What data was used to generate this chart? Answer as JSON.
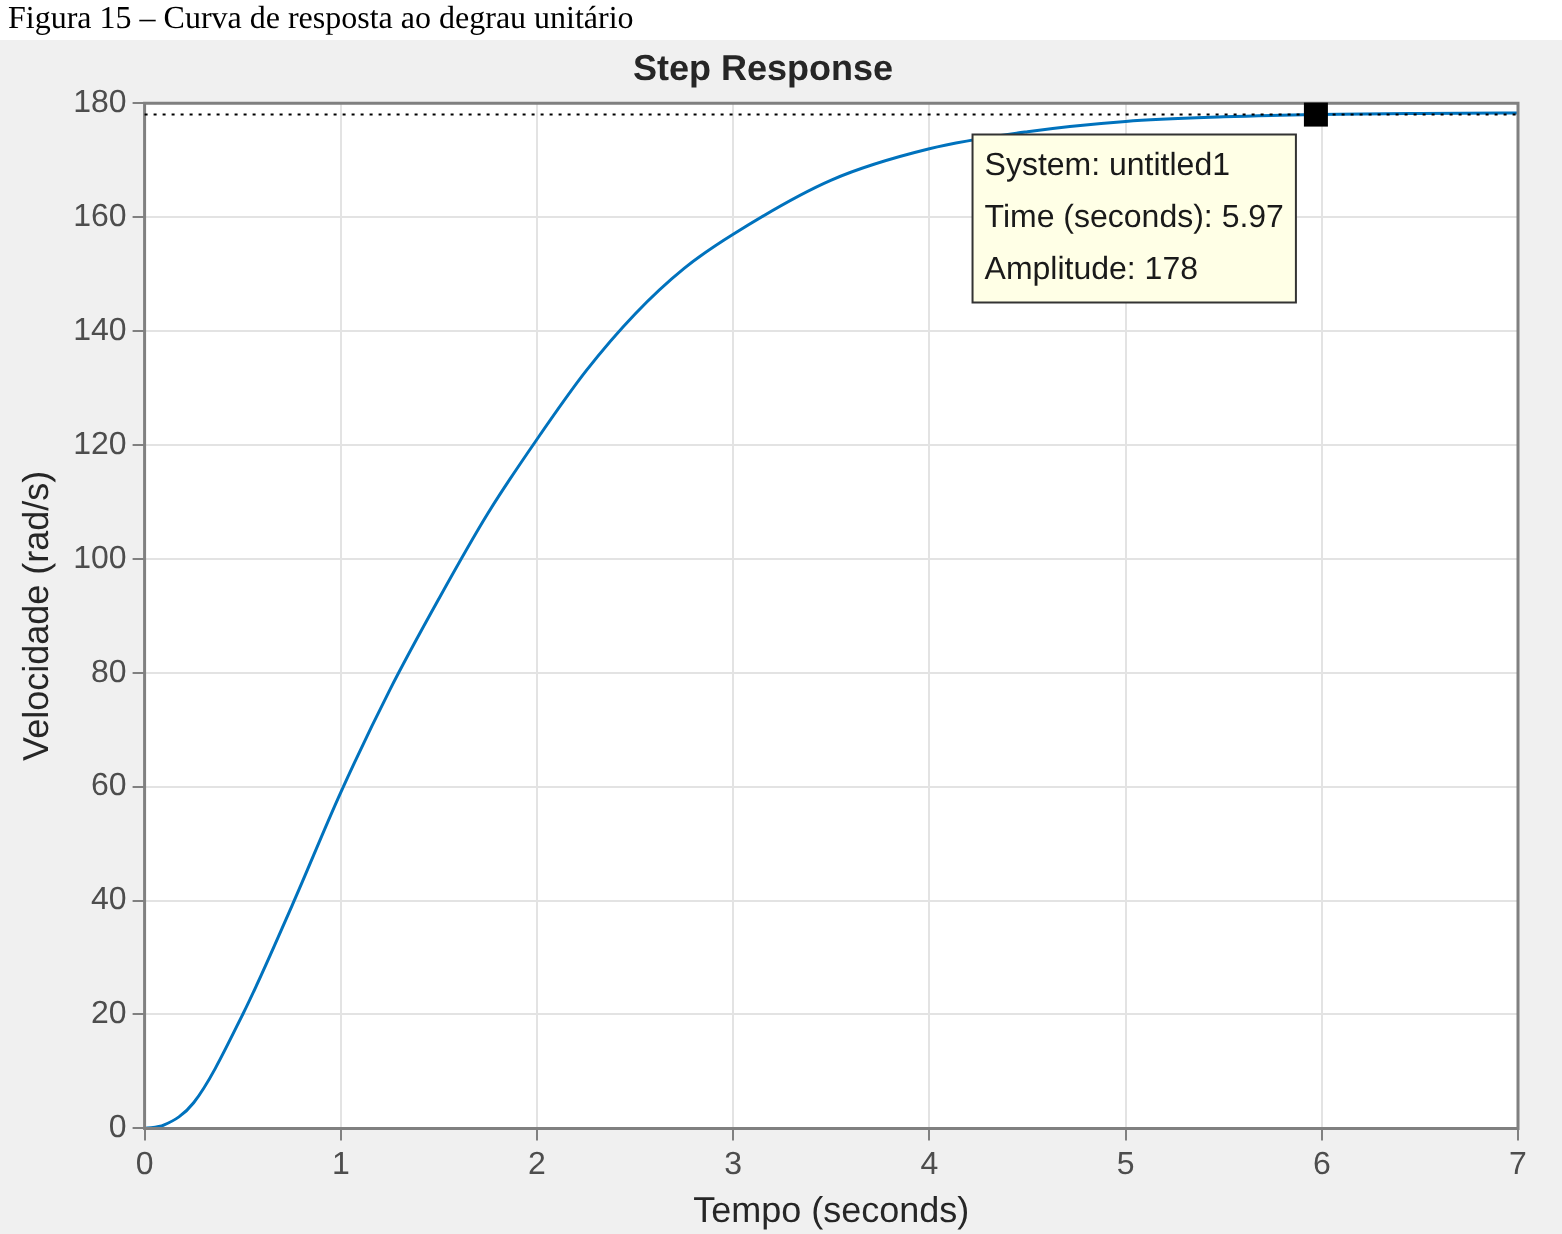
{
  "chart_data": {
    "type": "line",
    "title": "Step Response",
    "xlabel": "Tempo (seconds)",
    "ylabel": "Velocidade (rad/s)",
    "x": [
      0,
      0.1,
      0.25,
      0.5,
      0.75,
      1,
      1.25,
      1.5,
      1.75,
      2,
      2.25,
      2.5,
      2.75,
      3,
      3.5,
      4,
      4.5,
      5,
      5.5,
      5.97,
      6.5,
      7
    ],
    "series": [
      {
        "color": "#0072bd",
        "values": [
          0,
          0.6,
          4.5,
          20,
          39,
          59,
          77,
          93,
          108,
          121,
          133,
          143,
          151,
          157,
          166.5,
          172,
          175,
          176.8,
          177.6,
          178,
          178.2,
          178.3
        ]
      }
    ],
    "xlim": [
      0,
      7
    ],
    "xticks": [
      0,
      1,
      2,
      3,
      4,
      5,
      6,
      7
    ],
    "ylim": [
      0,
      180
    ],
    "yticks": [
      0,
      20,
      40,
      60,
      80,
      100,
      120,
      140,
      160,
      180
    ],
    "grid": true,
    "legend": false,
    "marker": "none",
    "line_style": "solid",
    "ref_lines": [
      {
        "axis": "y",
        "value": 178,
        "color": "#000000",
        "line_style": "dotted"
      }
    ],
    "annotations": [
      "Figura 15 – Curva de resposta ao degrau unitário",
      {
        "text": "System: untitled1\nTime (seconds): 5.97\nAmplitude: 178",
        "x": 5.97,
        "y": 178
      }
    ]
  }
}
